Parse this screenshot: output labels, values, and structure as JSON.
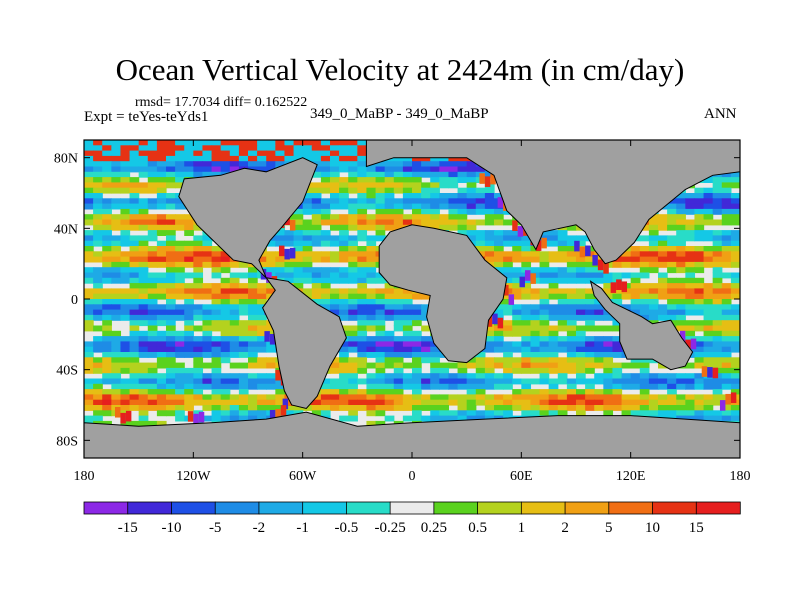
{
  "chart_data": {
    "type": "heatmap",
    "title": "Ocean Vertical Velocity at 2424m (in cm/day)",
    "stats_line": "rmsd= 17.7034 diff= 0.162522",
    "experiment_label": "Expt = teYes-teYds1",
    "case_label": "349_0_MaBP - 349_0_MaBP",
    "season": "ANN",
    "xlabel": "",
    "ylabel": "",
    "xlim": [
      -180,
      180
    ],
    "ylim": [
      -90,
      90
    ],
    "x_ticks": [
      {
        "value": -180,
        "label": "180"
      },
      {
        "value": -120,
        "label": "120W"
      },
      {
        "value": -60,
        "label": "60W"
      },
      {
        "value": 0,
        "label": "0"
      },
      {
        "value": 60,
        "label": "60E"
      },
      {
        "value": 120,
        "label": "120E"
      },
      {
        "value": 180,
        "label": "180"
      }
    ],
    "y_ticks": [
      {
        "value": 80,
        "label": "80N"
      },
      {
        "value": 40,
        "label": "40N"
      },
      {
        "value": 0,
        "label": "0"
      },
      {
        "value": -40,
        "label": "40S"
      },
      {
        "value": -80,
        "label": "80S"
      }
    ],
    "contour_levels": [
      "-15",
      "-10",
      "-5",
      "-2",
      "-1",
      "-0.5",
      "-0.25",
      "0.25",
      "0.5",
      "1",
      "2",
      "5",
      "10",
      "15"
    ],
    "colorbar_colors": [
      "#8c28e6",
      "#4128d8",
      "#1e50e6",
      "#1e8ce6",
      "#1eaae6",
      "#14c8e6",
      "#28dcc8",
      "#ebebeb",
      "#5ad21e",
      "#b4d21e",
      "#e6be14",
      "#f0a014",
      "#f06e14",
      "#e63214",
      "#e61e1e"
    ],
    "land_color": "#a0a0a0",
    "land_masks": [
      {
        "name": "americas",
        "points": [
          [
            -105,
            70
          ],
          [
            -92,
            74
          ],
          [
            -80,
            72
          ],
          [
            -60,
            80
          ],
          [
            -52,
            76
          ],
          [
            -60,
            55
          ],
          [
            -72,
            40
          ],
          [
            -78,
            33
          ],
          [
            -84,
            22
          ],
          [
            -80,
            12
          ],
          [
            -75,
            5
          ],
          [
            -82,
            -5
          ],
          [
            -76,
            -18
          ],
          [
            -73,
            -38
          ],
          [
            -70,
            -52
          ],
          [
            -66,
            -60
          ],
          [
            -58,
            -62
          ],
          [
            -52,
            -55
          ],
          [
            -45,
            -38
          ],
          [
            -36,
            -22
          ],
          [
            -40,
            -10
          ],
          [
            -52,
            -3
          ],
          [
            -68,
            10
          ],
          [
            -80,
            12
          ],
          [
            -88,
            20
          ],
          [
            -98,
            22
          ],
          [
            -108,
            32
          ],
          [
            -118,
            42
          ],
          [
            -128,
            58
          ],
          [
            -125,
            68
          ]
        ]
      },
      {
        "name": "eurasia-africa",
        "points": [
          [
            -25,
            75
          ],
          [
            -10,
            80
          ],
          [
            30,
            80
          ],
          [
            45,
            70
          ],
          [
            52,
            50
          ],
          [
            60,
            42
          ],
          [
            68,
            28
          ],
          [
            72,
            38
          ],
          [
            90,
            42
          ],
          [
            95,
            38
          ],
          [
            100,
            28
          ],
          [
            106,
            20
          ],
          [
            112,
            22
          ],
          [
            122,
            32
          ],
          [
            130,
            45
          ],
          [
            150,
            62
          ],
          [
            165,
            70
          ],
          [
            180,
            72
          ],
          [
            180,
            90
          ],
          [
            -25,
            90
          ]
        ]
      },
      {
        "name": "africa",
        "points": [
          [
            -18,
            30
          ],
          [
            -12,
            38
          ],
          [
            0,
            42
          ],
          [
            12,
            40
          ],
          [
            30,
            36
          ],
          [
            40,
            22
          ],
          [
            52,
            12
          ],
          [
            50,
            0
          ],
          [
            42,
            -12
          ],
          [
            40,
            -28
          ],
          [
            30,
            -36
          ],
          [
            20,
            -35
          ],
          [
            12,
            -25
          ],
          [
            8,
            -10
          ],
          [
            10,
            2
          ],
          [
            -2,
            5
          ],
          [
            -12,
            8
          ],
          [
            -18,
            15
          ]
        ]
      },
      {
        "name": "southeast-asia-australia",
        "points": [
          [
            98,
            10
          ],
          [
            104,
            6
          ],
          [
            110,
            -2
          ],
          [
            118,
            -6
          ],
          [
            126,
            -10
          ],
          [
            132,
            -14
          ],
          [
            142,
            -12
          ],
          [
            148,
            -22
          ],
          [
            154,
            -30
          ],
          [
            150,
            -38
          ],
          [
            142,
            -40
          ],
          [
            132,
            -34
          ],
          [
            118,
            -34
          ],
          [
            114,
            -24
          ],
          [
            114,
            -14
          ],
          [
            106,
            -6
          ],
          [
            100,
            2
          ]
        ]
      },
      {
        "name": "antarctica",
        "points": [
          [
            -180,
            -70
          ],
          [
            -150,
            -72
          ],
          [
            -110,
            -70
          ],
          [
            -80,
            -68
          ],
          [
            -58,
            -64
          ],
          [
            -30,
            -72
          ],
          [
            0,
            -70
          ],
          [
            40,
            -68
          ],
          [
            80,
            -66
          ],
          [
            120,
            -66
          ],
          [
            150,
            -68
          ],
          [
            180,
            -70
          ],
          [
            180,
            -90
          ],
          [
            -180,
            -90
          ]
        ]
      }
    ],
    "grid": false,
    "legend": "colorbar-bottom"
  }
}
